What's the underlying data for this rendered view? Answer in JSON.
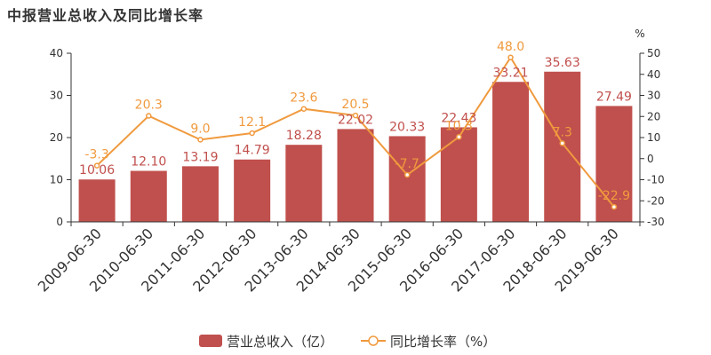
{
  "title": "中报营业总收入及同比增长率",
  "chart_data": {
    "type": "bar",
    "categories": [
      "2009-06-30",
      "2010-06-30",
      "2011-06-30",
      "2012-06-30",
      "2013-06-30",
      "2014-06-30",
      "2015-06-30",
      "2016-06-30",
      "2017-06-30",
      "2018-06-30",
      "2019-06-30"
    ],
    "series": [
      {
        "name": "营业总收入（亿）",
        "type": "bar",
        "axis": "left",
        "color": "#c0504d",
        "values": [
          10.06,
          12.1,
          13.19,
          14.79,
          18.28,
          22.02,
          20.33,
          22.43,
          33.21,
          35.63,
          27.49
        ],
        "labels": [
          "10.06",
          "12.10",
          "13.19",
          "14.79",
          "18.28",
          "22.02",
          "20.33",
          "22.43",
          "33.21",
          "35.63",
          "27.49"
        ]
      },
      {
        "name": "同比增长率（%）",
        "type": "line",
        "axis": "right",
        "color": "#f09a3e",
        "values": [
          -3.3,
          20.3,
          9.0,
          12.1,
          23.6,
          20.5,
          -7.7,
          10.3,
          48.0,
          7.3,
          -22.9
        ],
        "labels": [
          "-3.3",
          "20.3",
          "9.0",
          "12.1",
          "23.6",
          "20.5",
          "-7.7",
          "10.3",
          "48.0",
          "7.3",
          "-22.9"
        ]
      }
    ],
    "y_left": {
      "min": 0,
      "max": 40,
      "ticks": [
        0,
        10,
        20,
        30,
        40
      ]
    },
    "y_right": {
      "min": -30,
      "max": 50,
      "ticks": [
        -30,
        -20,
        -10,
        0,
        10,
        20,
        30,
        40,
        50
      ],
      "unit": "%"
    },
    "grid": false,
    "legend_position": "bottom-center"
  }
}
